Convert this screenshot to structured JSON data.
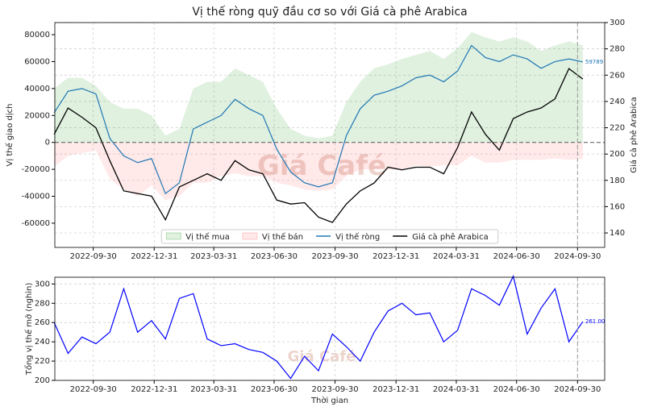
{
  "chart_data": [
    {
      "type": "line",
      "title": "Vị thế ròng quỹ đầu cơ so với Giá cà phê Arabica",
      "ylabel": "Vị thế giao dịch",
      "y2label": "Giá cà phê Arabica",
      "watermark": "Giá Café",
      "x": [
        "2022-08-02",
        "2022-08-23",
        "2022-09-13",
        "2022-10-04",
        "2022-10-25",
        "2022-11-15",
        "2022-12-06",
        "2022-12-27",
        "2023-01-17",
        "2023-02-07",
        "2023-02-28",
        "2023-03-21",
        "2023-04-11",
        "2023-05-02",
        "2023-05-23",
        "2023-06-13",
        "2023-07-04",
        "2023-07-25",
        "2023-08-15",
        "2023-09-05",
        "2023-09-26",
        "2023-10-17",
        "2023-11-07",
        "2023-11-28",
        "2023-12-19",
        "2024-01-09",
        "2024-01-30",
        "2024-02-20",
        "2024-03-12",
        "2024-04-02",
        "2024-04-23",
        "2024-05-14",
        "2024-06-04",
        "2024-06-25",
        "2024-07-16",
        "2024-08-06",
        "2024-08-27",
        "2024-09-17",
        "2024-10-08"
      ],
      "xlim": [
        "2022-08-03",
        "2024-11-10"
      ],
      "xticks": [
        "2022-09-30",
        "2022-12-31",
        "2023-03-31",
        "2023-06-30",
        "2023-09-30",
        "2023-12-31",
        "2024-03-31",
        "2024-06-30",
        "2024-09-30"
      ],
      "ylim": [
        -78000,
        89000
      ],
      "yticks": [
        -60000,
        -40000,
        -20000,
        0,
        20000,
        40000,
        60000,
        80000
      ],
      "y2lim": [
        129,
        300
      ],
      "y2ticks": [
        140,
        160,
        180,
        200,
        220,
        240,
        260,
        280,
        300
      ],
      "vline": "2024-09-30",
      "grid": true,
      "series": [
        {
          "name": "Vị thế mua",
          "style": "area",
          "color": "#2ca02c",
          "values": [
            40000,
            48000,
            48000,
            42000,
            30000,
            25000,
            25000,
            20000,
            5000,
            10000,
            40000,
            45000,
            45000,
            55000,
            50000,
            45000,
            25000,
            10000,
            5000,
            3000,
            5000,
            30000,
            45000,
            55000,
            58000,
            62000,
            65000,
            68000,
            62000,
            70000,
            82000,
            78000,
            75000,
            78000,
            75000,
            68000,
            72000,
            75000,
            72000
          ]
        },
        {
          "name": "Vị thế bán",
          "style": "area",
          "color": "#ff6b6b",
          "values": [
            -18000,
            -10000,
            -8000,
            -6000,
            -27000,
            -35000,
            -40000,
            -32000,
            -43000,
            -40000,
            -30000,
            -30000,
            -25000,
            -23000,
            -25000,
            -25000,
            -30000,
            -32000,
            -35000,
            -36000,
            -35000,
            -25000,
            -20000,
            -20000,
            -20000,
            -20000,
            -17000,
            -18000,
            -17000,
            -17000,
            -10000,
            -15000,
            -15000,
            -13000,
            -13000,
            -13000,
            -12000,
            -13000,
            -12211
          ]
        },
        {
          "name": "Vị thế ròng",
          "style": "line",
          "color": "#1f77b4",
          "end_label": "59789",
          "values": [
            22000,
            38000,
            40000,
            36000,
            3000,
            -10000,
            -15000,
            -12000,
            -38000,
            -30000,
            10000,
            15000,
            20000,
            32000,
            25000,
            20000,
            -5000,
            -22000,
            -30000,
            -33000,
            -30000,
            5000,
            25000,
            35000,
            38000,
            42000,
            48000,
            50000,
            45000,
            53000,
            72000,
            63000,
            60000,
            65000,
            62000,
            55000,
            60000,
            62000,
            59789
          ]
        },
        {
          "name": "Giá cà phê Arabica",
          "style": "line",
          "color": "#000000",
          "axis": "y2",
          "values": [
            215,
            235,
            228,
            220,
            195,
            172,
            170,
            168,
            150,
            175,
            180,
            185,
            180,
            195,
            188,
            185,
            165,
            162,
            163,
            152,
            148,
            162,
            172,
            178,
            190,
            188,
            190,
            190,
            185,
            205,
            232,
            215,
            203,
            227,
            232,
            235,
            242,
            265,
            257
          ]
        }
      ]
    },
    {
      "type": "line",
      "ylabel": "Tổng vị thế mở (nghìn)",
      "xlabel": "Thời gian",
      "watermark": "Giá Café",
      "x": [
        "2022-08-02",
        "2022-08-23",
        "2022-09-13",
        "2022-10-04",
        "2022-10-25",
        "2022-11-15",
        "2022-12-06",
        "2022-12-27",
        "2023-01-17",
        "2023-02-07",
        "2023-02-28",
        "2023-03-21",
        "2023-04-11",
        "2023-05-02",
        "2023-05-23",
        "2023-06-13",
        "2023-07-04",
        "2023-07-25",
        "2023-08-15",
        "2023-09-05",
        "2023-09-26",
        "2023-10-17",
        "2023-11-07",
        "2023-11-28",
        "2023-12-19",
        "2024-01-09",
        "2024-01-30",
        "2024-02-20",
        "2024-03-12",
        "2024-04-02",
        "2024-04-23",
        "2024-05-14",
        "2024-06-04",
        "2024-06-25",
        "2024-07-16",
        "2024-08-06",
        "2024-08-27",
        "2024-09-17",
        "2024-10-08"
      ],
      "xlim": [
        "2022-08-03",
        "2024-11-10"
      ],
      "xticks": [
        "2022-09-30",
        "2022-12-31",
        "2023-03-31",
        "2023-06-30",
        "2023-09-30",
        "2023-12-31",
        "2024-03-31",
        "2024-06-30",
        "2024-09-30"
      ],
      "ylim": [
        200,
        307
      ],
      "yticks": [
        200,
        220,
        240,
        260,
        280,
        300
      ],
      "vline": "2024-09-30",
      "grid": true,
      "series": [
        {
          "style": "line",
          "color": "#0000ff",
          "end_label": "261.00",
          "values": [
            260,
            228,
            245,
            238,
            250,
            295,
            250,
            262,
            243,
            285,
            290,
            243,
            236,
            238,
            232,
            229,
            220,
            202,
            225,
            210,
            248,
            235,
            220,
            250,
            272,
            280,
            268,
            270,
            240,
            252,
            295,
            288,
            278,
            308,
            248,
            275,
            295,
            240,
            261
          ]
        }
      ]
    }
  ]
}
